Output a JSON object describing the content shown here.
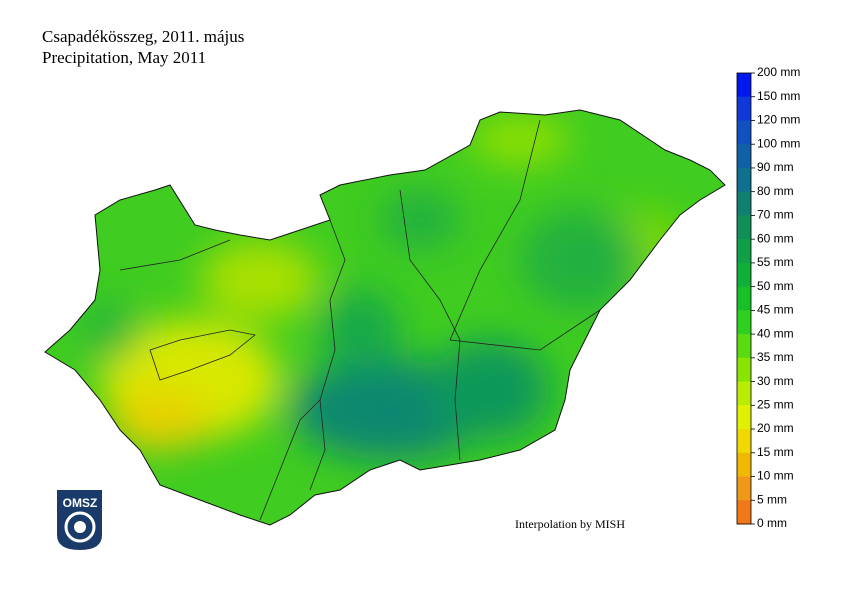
{
  "header": {
    "title": "Csapadékösszeg, 2011. május",
    "subtitle": "Precipitation, May 2011"
  },
  "legend": {
    "labels": [
      "200 mm",
      "150 mm",
      "120 mm",
      "100 mm",
      "90 mm",
      "80 mm",
      "70 mm",
      "60 mm",
      "55 mm",
      "50 mm",
      "45 mm",
      "40 mm",
      "35 mm",
      "30 mm",
      "25 mm",
      "20 mm",
      "15 mm",
      "10 mm",
      "5 mm",
      "0 mm"
    ],
    "colors": [
      "#0018f0",
      "#1038d8",
      "#1050c0",
      "#1060a8",
      "#107090",
      "#108070",
      "#109058",
      "#10a048",
      "#10b038",
      "#18c028",
      "#30d020",
      "#58dc10",
      "#88e400",
      "#b8ec00",
      "#e0f000",
      "#f0d800",
      "#f0b800",
      "#f09818",
      "#f07818"
    ]
  },
  "credit": "Interpolation by MISH",
  "logo": {
    "text": "OMSZ"
  }
}
